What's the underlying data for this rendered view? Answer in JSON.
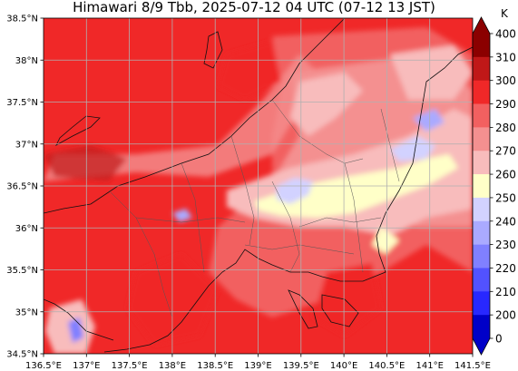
{
  "title": "Himawari 8/9 Tbb, 2025-07-12 04 UTC (07-12 13 JST)",
  "lon_ticks": [
    "136.5°E",
    "137°E",
    "137.5°E",
    "138°E",
    "138.5°E",
    "139°E",
    "139.5°E",
    "140°E",
    "140.5°E",
    "141°E",
    "141.5°E"
  ],
  "lat_ticks": [
    "38.5°N",
    "38°N",
    "37.5°N",
    "37°N",
    "36.5°N",
    "36°N",
    "35.5°N",
    "35°N",
    "34.5°N"
  ],
  "colorbar": {
    "unit": "K",
    "labels": [
      "400",
      "310",
      "300",
      "290",
      "280",
      "270",
      "260",
      "250",
      "240",
      "230",
      "220",
      "210",
      "200",
      "0"
    ],
    "colors": [
      "#8b0000",
      "#c01818",
      "#f02828",
      "#f26060",
      "#f49090",
      "#f8bcbc",
      "#ffffc8",
      "#d2d2ff",
      "#aaaaff",
      "#8080ff",
      "#5252ff",
      "#2828ff",
      "#0000c8"
    ],
    "extend": "both"
  }
}
